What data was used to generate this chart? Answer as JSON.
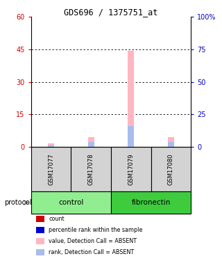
{
  "title": "GDS696 / 1375751_at",
  "samples": [
    "GSM17077",
    "GSM17078",
    "GSM17079",
    "GSM17080"
  ],
  "groups": [
    "control",
    "control",
    "fibronectin",
    "fibronectin"
  ],
  "group_colors": {
    "control": "#90EE90",
    "fibronectin": "#3ECC3E"
  },
  "pink_values": [
    1.5,
    4.5,
    44.5,
    4.5
  ],
  "blue_values": [
    1.2,
    3.8,
    16.2,
    3.8
  ],
  "ylim_left": [
    0,
    60
  ],
  "ylim_right": [
    0,
    100
  ],
  "yticks_left": [
    0,
    15,
    30,
    45,
    60
  ],
  "ytick_labels_left": [
    "0",
    "15",
    "30",
    "45",
    "60"
  ],
  "yticks_right": [
    0,
    25,
    50,
    75,
    100
  ],
  "ytick_labels_right": [
    "0",
    "25",
    "50",
    "75",
    "100%"
  ],
  "left_axis_color": "#CC0000",
  "right_axis_color": "#0000CC",
  "pink_color": "#FFB6C1",
  "blue_color": "#AABCEE",
  "sample_box_color": "#D3D3D3",
  "protocol_label": "protocol",
  "legend_items": [
    {
      "color": "#CC0000",
      "label": "count"
    },
    {
      "color": "#0000CC",
      "label": "percentile rank within the sample"
    },
    {
      "color": "#FFB6C1",
      "label": "value, Detection Call = ABSENT"
    },
    {
      "color": "#AABCEE",
      "label": "rank, Detection Call = ABSENT"
    }
  ]
}
